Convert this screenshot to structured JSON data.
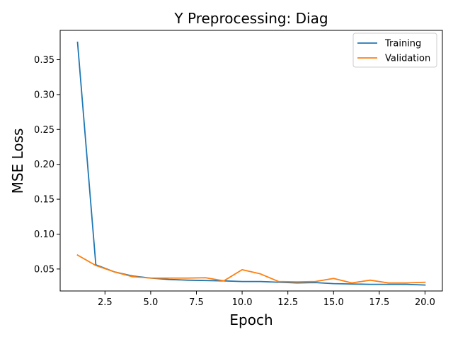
{
  "chart_data": {
    "type": "line",
    "title": "Y Preprocessing: Diag",
    "xlabel": "Epoch",
    "ylabel": "MSE Loss",
    "xlim": [
      0.05,
      20.95
    ],
    "ylim": [
      0.0185,
      0.392
    ],
    "xticks": [
      2.5,
      5.0,
      7.5,
      10.0,
      12.5,
      15.0,
      17.5,
      20.0
    ],
    "xtick_labels": [
      "2.5",
      "5.0",
      "7.5",
      "10.0",
      "12.5",
      "15.0",
      "17.5",
      "20.0"
    ],
    "yticks": [
      0.05,
      0.1,
      0.15,
      0.2,
      0.25,
      0.3,
      0.35
    ],
    "ytick_labels": [
      "0.05",
      "0.10",
      "0.15",
      "0.20",
      "0.25",
      "0.30",
      "0.35"
    ],
    "grid": false,
    "legend_position": "top-right",
    "x": [
      1,
      2,
      3,
      4,
      5,
      6,
      7,
      8,
      9,
      10,
      11,
      12,
      13,
      14,
      15,
      16,
      17,
      18,
      19,
      20
    ],
    "series": [
      {
        "name": "Training",
        "color": "#1f77b4",
        "values": [
          0.375,
          0.056,
          0.046,
          0.04,
          0.037,
          0.035,
          0.034,
          0.0335,
          0.033,
          0.032,
          0.032,
          0.031,
          0.03,
          0.0305,
          0.029,
          0.0285,
          0.028,
          0.028,
          0.028,
          0.027
        ]
      },
      {
        "name": "Validation",
        "color": "#ff7f0e",
        "values": [
          0.07,
          0.055,
          0.046,
          0.039,
          0.037,
          0.037,
          0.037,
          0.0375,
          0.033,
          0.049,
          0.043,
          0.032,
          0.0315,
          0.032,
          0.0365,
          0.03,
          0.034,
          0.03,
          0.03,
          0.031
        ]
      }
    ]
  }
}
